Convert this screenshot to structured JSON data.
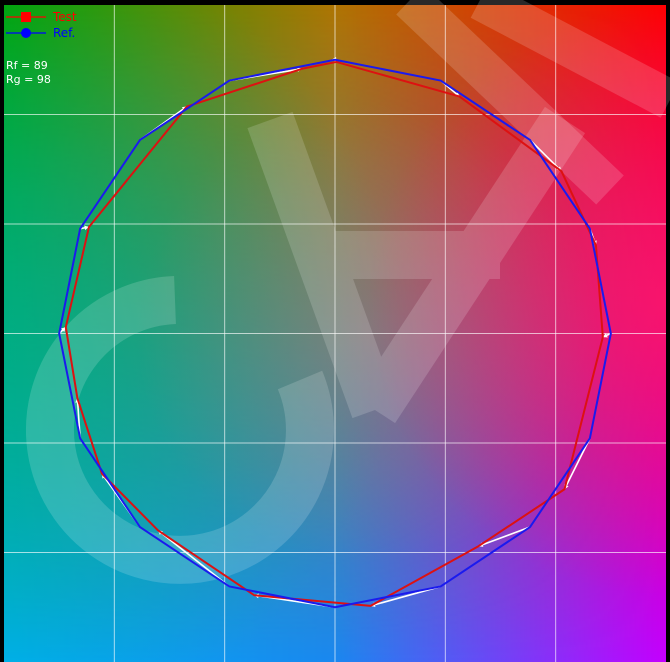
{
  "chart_data": {
    "type": "line",
    "title": "",
    "xlabel": "",
    "ylabel": "",
    "xlim": [
      -1.2,
      1.2
    ],
    "ylim": [
      -1.2,
      1.2
    ],
    "grid": true,
    "legend_position": "top-left",
    "legend": [
      {
        "name": "Test",
        "color": "#ff0000",
        "marker": "square"
      },
      {
        "name": "Ref.",
        "color": "#0000ff",
        "marker": "circle"
      }
    ],
    "metrics": [
      {
        "label": "Rf = 89"
      },
      {
        "label": "Rg = 98"
      }
    ],
    "series": [
      {
        "name": "Test",
        "color": "#dd1111",
        "points": [
          [
            0.005,
            0.992
          ],
          [
            0.451,
            0.866
          ],
          [
            0.821,
            0.593
          ],
          [
            0.946,
            0.322
          ],
          [
            0.971,
            -0.013
          ],
          [
            0.832,
            -0.569
          ],
          [
            0.52,
            -0.777
          ],
          [
            0.129,
            -0.995
          ],
          [
            -0.293,
            -0.956
          ],
          [
            -0.642,
            -0.719
          ],
          [
            -0.845,
            -0.512
          ],
          [
            -0.934,
            -0.236
          ],
          [
            -0.976,
            0.023
          ],
          [
            -0.892,
            0.389
          ],
          [
            -0.537,
            0.829
          ],
          [
            -0.12,
            0.967
          ]
        ]
      },
      {
        "name": "Ref.",
        "color": "#1a1aee",
        "points": [
          [
            0.0,
            1.0
          ],
          [
            0.383,
            0.924
          ],
          [
            0.707,
            0.707
          ],
          [
            0.924,
            0.383
          ],
          [
            1.0,
            0.0
          ],
          [
            0.924,
            -0.383
          ],
          [
            0.707,
            -0.707
          ],
          [
            0.383,
            -0.924
          ],
          [
            0.0,
            -1.0
          ],
          [
            -0.383,
            -0.924
          ],
          [
            -0.707,
            -0.707
          ],
          [
            -0.924,
            -0.383
          ],
          [
            -1.0,
            0.0
          ],
          [
            -0.924,
            0.383
          ],
          [
            -0.707,
            0.707
          ],
          [
            -0.383,
            0.924
          ]
        ]
      }
    ]
  }
}
